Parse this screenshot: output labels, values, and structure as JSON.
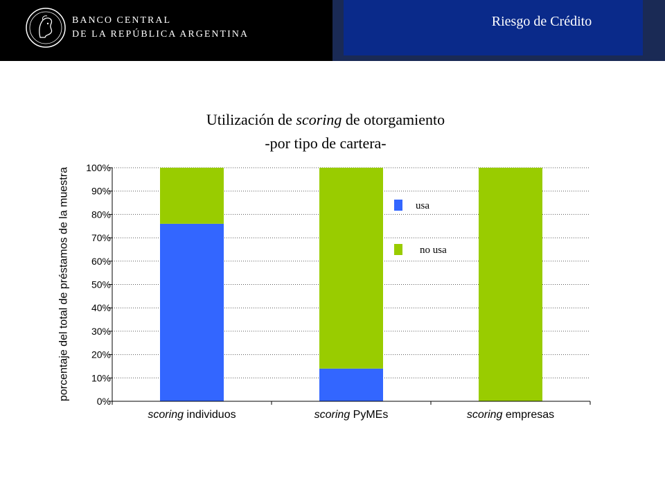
{
  "header": {
    "bank_line1": "BANCO CENTRAL",
    "bank_line2": "DE LA REPÚBLICA ARGENTINA",
    "section_title": "Riesgo de Crédito",
    "logo_icon": "central-bank-seal-icon"
  },
  "chart_data": {
    "type": "bar",
    "stacked": true,
    "title": {
      "line1_prefix": "Utilización de ",
      "line1_italic": "scoring",
      "line1_suffix": " de otorgamiento",
      "line2": "-por tipo de cartera-"
    },
    "ylabel": "porcentaje del total de préstamos de la muestra",
    "xlabel": "",
    "ylim": [
      0,
      100
    ],
    "yticks": [
      "0%",
      "10%",
      "20%",
      "30%",
      "40%",
      "50%",
      "60%",
      "70%",
      "80%",
      "90%",
      "100%"
    ],
    "categories": [
      {
        "italic": "scoring",
        "rest": " individuos"
      },
      {
        "italic": "scoring",
        "rest": " PyMEs"
      },
      {
        "italic": "scoring",
        "rest": " empresas"
      }
    ],
    "series": [
      {
        "name": "usa",
        "color": "#3366ff",
        "values": [
          76,
          14,
          0
        ]
      },
      {
        "name": "no usa",
        "color": "#99cc00",
        "values": [
          24,
          86,
          100
        ]
      }
    ],
    "grid": true,
    "legend_position": "right-center"
  }
}
